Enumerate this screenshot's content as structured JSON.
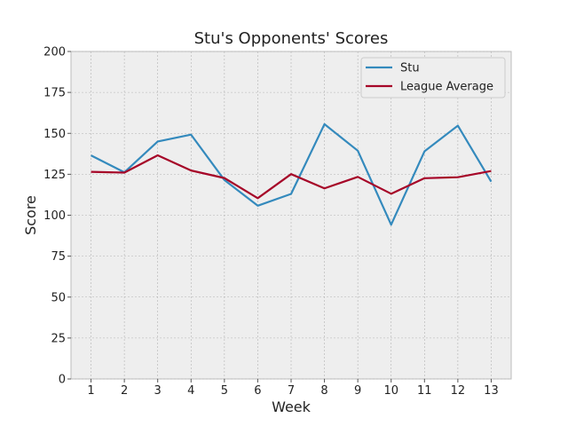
{
  "chart_data": {
    "type": "line",
    "title": "Stu's Opponents' Scores",
    "xlabel": "Week",
    "ylabel": "Score",
    "x": [
      1,
      2,
      3,
      4,
      5,
      6,
      7,
      8,
      9,
      10,
      11,
      12,
      13
    ],
    "xlim": [
      0.4,
      13.6
    ],
    "ylim": [
      0,
      200
    ],
    "yticks": [
      0,
      25,
      50,
      75,
      100,
      125,
      150,
      175,
      200
    ],
    "grid": true,
    "legend_position": "top-right",
    "series": [
      {
        "name": "Stu",
        "color": "#348abd",
        "values": [
          136.5,
          126.2,
          145.0,
          149.2,
          121.5,
          105.8,
          113.0,
          155.6,
          139.4,
          94.2,
          139.0,
          154.7,
          120.5
        ]
      },
      {
        "name": "League Average",
        "color": "#a60628",
        "values": [
          126.5,
          126.0,
          136.6,
          127.3,
          122.7,
          110.4,
          125.1,
          116.4,
          123.4,
          113.1,
          122.6,
          123.2,
          127.0
        ]
      }
    ]
  }
}
